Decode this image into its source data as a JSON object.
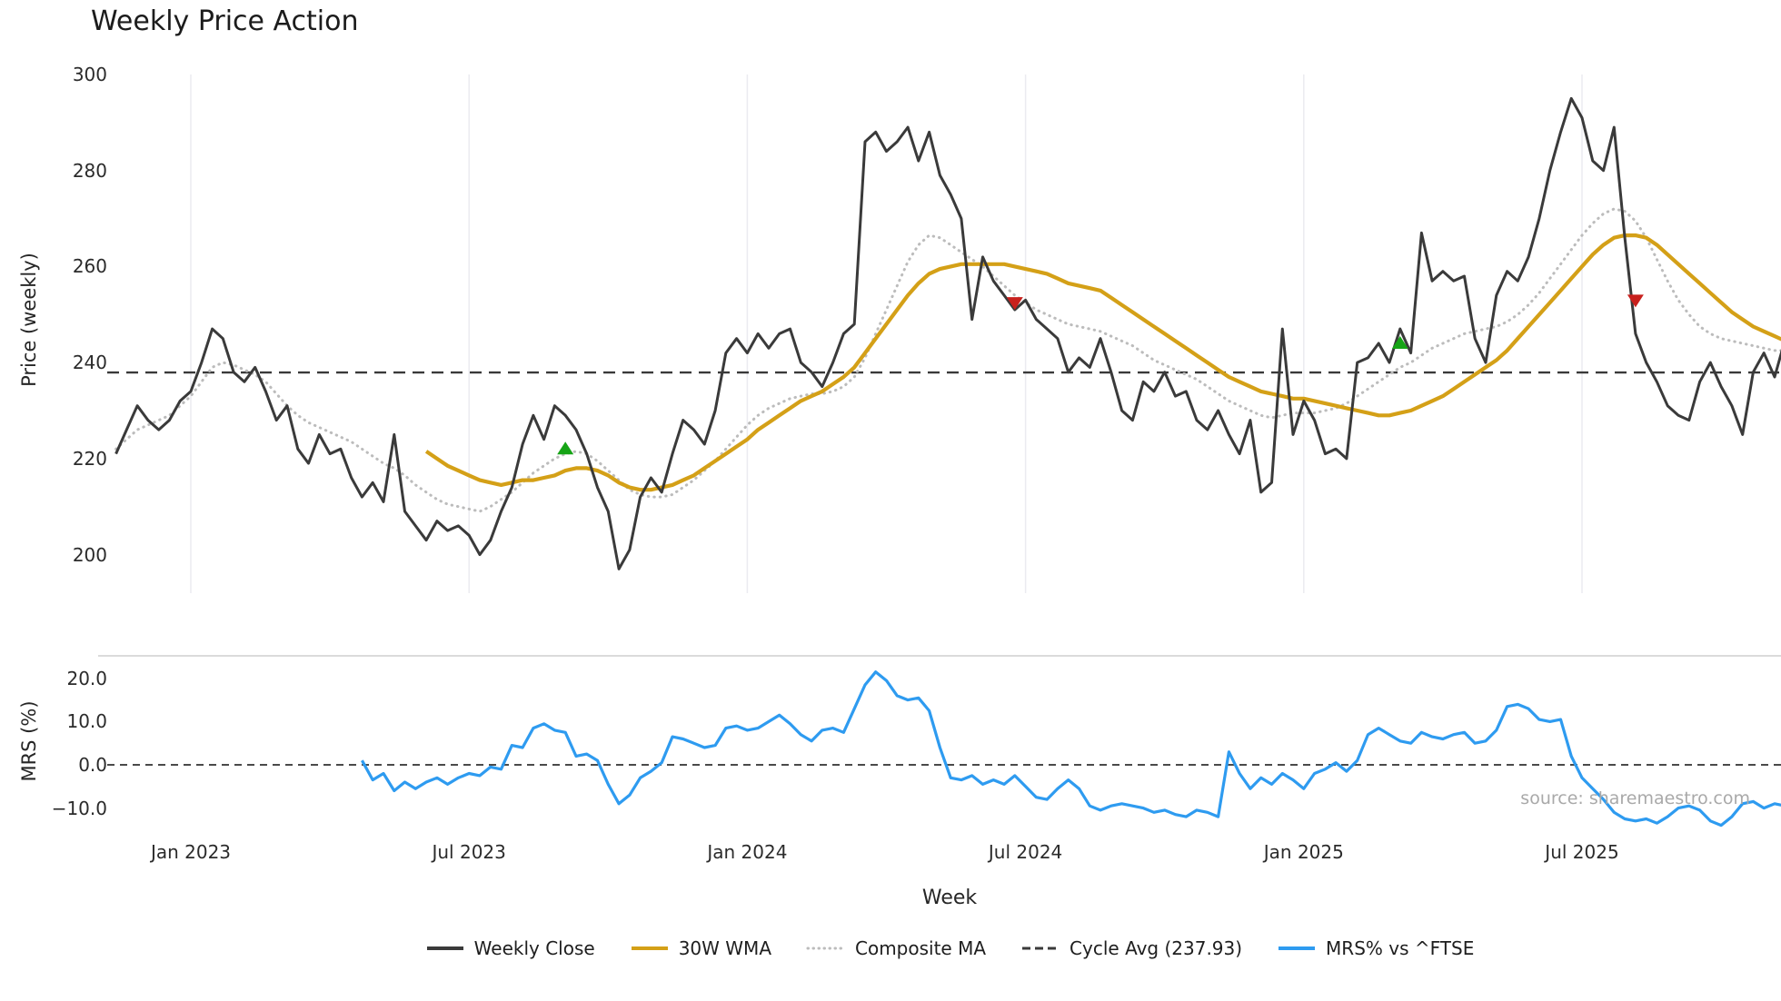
{
  "source": "source: sharemaestro.com",
  "colors": {
    "close": "#3a3a3a",
    "wma": "#d4a017",
    "composite": "#bcbcbc",
    "cycle": "#3a3a3a",
    "mrs": "#2e9bf0",
    "buy": "#16a416",
    "sell": "#c8201d",
    "grid": "#ebebf0",
    "spine": "#cfcfcf",
    "zero": "#4a4a4a",
    "axis_text": "#2b2b2b",
    "source_text": "#a9a9a9"
  },
  "legend": [
    {
      "label": "Weekly Close",
      "color_key": "close",
      "style": "solid"
    },
    {
      "label": "30W WMA",
      "color_key": "wma",
      "style": "solid"
    },
    {
      "label": "Composite MA",
      "color_key": "composite",
      "style": "dotted"
    },
    {
      "label": "Cycle Avg (237.93)",
      "color_key": "cycle",
      "style": "dashed"
    },
    {
      "label": "MRS% vs ^FTSE",
      "color_key": "mrs",
      "style": "solid"
    }
  ],
  "chart_data": [
    {
      "type": "line",
      "title": "Weekly Price Action",
      "xlabel": "Week",
      "ylabel": "Price (weekly)",
      "ylim": [
        192,
        303
      ],
      "x_unit": "week_index",
      "n_points": 157,
      "grid": "vertical-only",
      "legend_position": "bottom-center",
      "cycle_avg": 237.93,
      "yticks": [
        {
          "v": 300,
          "label": "300"
        },
        {
          "v": 280,
          "label": "280"
        },
        {
          "v": 260,
          "label": "260"
        },
        {
          "v": 240,
          "label": "240"
        },
        {
          "v": 220,
          "label": "220"
        },
        {
          "v": 200,
          "label": "200"
        }
      ],
      "xticks": [
        {
          "week": 7,
          "label": "Jan 2023"
        },
        {
          "week": 33,
          "label": "Jul 2023"
        },
        {
          "week": 59,
          "label": "Jan 2024"
        },
        {
          "week": 85,
          "label": "Jul 2024"
        },
        {
          "week": 111,
          "label": "Jan 2025"
        },
        {
          "week": 137,
          "label": "Jul 2025"
        }
      ],
      "series": [
        {
          "name": "Weekly Close",
          "color_key": "close",
          "style": "solid",
          "start_week": 0,
          "values": [
            221,
            226,
            231,
            228,
            226,
            228,
            232,
            234,
            240,
            247,
            245,
            238,
            236,
            239,
            234,
            228,
            231,
            222,
            219,
            225,
            221,
            222,
            216,
            212,
            215,
            211,
            225,
            209,
            206,
            203,
            207,
            205,
            206,
            204,
            200,
            203,
            209,
            214,
            223,
            229,
            224,
            231,
            229,
            226,
            221,
            214,
            209,
            197,
            201,
            212,
            216,
            213,
            221,
            228,
            226,
            223,
            230,
            242,
            245,
            242,
            246,
            243,
            246,
            247,
            240,
            238,
            235,
            240,
            246,
            248,
            286,
            288,
            284,
            286,
            289,
            282,
            288,
            279,
            275,
            270,
            249,
            262,
            257,
            254,
            251,
            253,
            249,
            247,
            245,
            238,
            241,
            239,
            245,
            238,
            230,
            228,
            236,
            234,
            238,
            233,
            234,
            228,
            226,
            230,
            225,
            221,
            228,
            213,
            215,
            247,
            225,
            232,
            228,
            221,
            222,
            220,
            240,
            241,
            244,
            240,
            247,
            242,
            267,
            257,
            259,
            257,
            258,
            245,
            240,
            254,
            259,
            257,
            262,
            270,
            280,
            288,
            295,
            291,
            282,
            280,
            289,
            266,
            246,
            240,
            236,
            231,
            229,
            228,
            236,
            240,
            235,
            231,
            225,
            238,
            242,
            237,
            245
          ]
        },
        {
          "name": "30W WMA",
          "color_key": "wma",
          "style": "solid",
          "start_week": 29,
          "values": [
            221.5,
            220,
            218.5,
            217.5,
            216.5,
            215.5,
            215,
            214.5,
            215,
            215.5,
            215.5,
            216,
            216.5,
            217.5,
            218,
            218,
            217.5,
            216.5,
            215,
            214,
            213.5,
            213.5,
            214,
            214.5,
            215.5,
            216.5,
            218,
            219.5,
            221,
            222.5,
            224,
            226,
            227.5,
            229,
            230.5,
            232,
            233,
            234,
            235.5,
            237,
            239,
            242,
            245,
            248,
            251,
            254,
            256.5,
            258.5,
            259.5,
            260,
            260.5,
            260.5,
            260.5,
            260.5,
            260.5,
            260,
            259.5,
            259,
            258.5,
            257.5,
            256.5,
            256,
            255.5,
            255,
            253.5,
            252,
            250.5,
            249,
            247.5,
            246,
            244.5,
            243,
            241.5,
            240,
            238.5,
            237,
            236,
            235,
            234,
            233.5,
            233,
            232.5,
            232.5,
            232,
            231.5,
            231,
            230.5,
            230,
            229.5,
            229,
            229,
            229.5,
            230,
            231,
            232,
            233,
            234.5,
            236,
            237.5,
            239,
            240.5,
            242.5,
            245,
            247.5,
            250,
            252.5,
            255,
            257.5,
            260,
            262.5,
            264.5,
            266,
            266.5,
            266.5,
            266,
            264.5,
            262.5,
            260.5,
            258.5,
            256.5,
            254.5,
            252.5,
            250.5,
            249,
            247.5,
            246.5,
            245.5,
            244.5
          ]
        },
        {
          "name": "Composite MA",
          "color_key": "composite",
          "style": "dotted",
          "start_week": 0,
          "values": [
            222,
            224,
            226,
            227,
            228,
            229,
            231,
            233,
            236,
            239,
            240,
            239.5,
            238.5,
            237.5,
            236,
            233.5,
            231,
            229,
            227.5,
            226.5,
            225.5,
            224.5,
            223.5,
            222,
            220.5,
            219,
            218,
            216.5,
            214.5,
            213,
            211.5,
            210.5,
            210,
            209.5,
            209,
            210,
            211.5,
            213,
            215,
            217,
            218.5,
            220,
            221,
            221.5,
            221,
            219.5,
            217.5,
            215.5,
            213.5,
            212.5,
            212,
            212,
            212.5,
            214,
            215.5,
            217.5,
            219.5,
            222,
            224.5,
            227,
            229,
            230.5,
            231.5,
            232.5,
            233,
            233.5,
            233.5,
            234,
            235,
            237,
            241,
            246,
            251,
            256,
            261,
            264.5,
            266.5,
            266,
            264.5,
            263,
            261.5,
            260,
            258,
            256,
            254,
            252.5,
            251,
            250,
            249,
            248,
            247.5,
            247,
            246.5,
            245.5,
            244.5,
            243.5,
            242,
            240.5,
            239.5,
            238.5,
            237.5,
            236.5,
            235,
            233.5,
            232,
            231,
            230,
            229,
            228.5,
            229,
            229.5,
            229.5,
            229.5,
            230,
            230.5,
            231.5,
            233,
            234.5,
            236,
            237.5,
            239,
            240,
            241.5,
            243,
            244,
            245,
            246,
            246.5,
            247,
            247.5,
            248.5,
            250,
            252,
            254.5,
            257.5,
            260.5,
            263.5,
            266.5,
            269,
            271,
            272,
            271.5,
            269.5,
            266,
            261.5,
            257,
            253,
            250,
            247.5,
            246,
            245,
            244.5,
            244,
            243.5,
            243,
            242.5,
            242.5
          ]
        }
      ],
      "signals": {
        "buy": [
          {
            "week": 42,
            "price": 222
          },
          {
            "week": 120,
            "price": 244
          }
        ],
        "sell": [
          {
            "week": 84,
            "price": 252.5
          },
          {
            "week": 142,
            "price": 253
          }
        ]
      }
    },
    {
      "type": "line",
      "ylabel": "MRS (%)",
      "ylim": [
        -17,
        23
      ],
      "zero_line": 0,
      "yticks": [
        {
          "v": 20,
          "label": "20.0"
        },
        {
          "v": 10,
          "label": "10.0"
        },
        {
          "v": 0,
          "label": "0.0"
        },
        {
          "v": -10,
          "label": "−10.0"
        }
      ],
      "series": [
        {
          "name": "MRS% vs ^FTSE",
          "color_key": "mrs",
          "style": "solid",
          "start_week": 23,
          "values": [
            1,
            -3.5,
            -2,
            -6,
            -4,
            -5.5,
            -4,
            -3,
            -4.5,
            -3,
            -2,
            -2.5,
            -0.5,
            -1,
            4.5,
            4,
            8.5,
            9.5,
            8,
            7.5,
            2,
            2.5,
            1,
            -4.5,
            -9,
            -7,
            -3,
            -1.5,
            0.5,
            6.5,
            6,
            5,
            4,
            4.5,
            8.5,
            9,
            8,
            8.5,
            10,
            11.5,
            9.5,
            7,
            5.5,
            8,
            8.5,
            7.5,
            13,
            18.5,
            21.5,
            19.5,
            16,
            15,
            15.5,
            12.5,
            4,
            -3,
            -3.5,
            -2.5,
            -4.5,
            -3.5,
            -4.5,
            -2.5,
            -5,
            -7.5,
            -8,
            -5.5,
            -3.5,
            -5.5,
            -9.5,
            -10.5,
            -9.5,
            -9,
            -9.5,
            -10,
            -11,
            -10.5,
            -11.5,
            -12,
            -10.5,
            -11,
            -12,
            3,
            -2,
            -5.5,
            -3,
            -4.5,
            -2,
            -3.5,
            -5.5,
            -2,
            -1,
            0.5,
            -1.5,
            1,
            7,
            8.5,
            7,
            5.5,
            5,
            7.5,
            6.5,
            6,
            7,
            7.5,
            5,
            5.5,
            8,
            13.5,
            14,
            13,
            10.5,
            10,
            10.5,
            2,
            -3,
            -5.5,
            -8,
            -11,
            -12.5,
            -13,
            -12.5,
            -13.5,
            -12,
            -10,
            -9.5,
            -10.5,
            -13,
            -14,
            -12,
            -9,
            -8.5,
            -10,
            -9,
            -9.5
          ]
        }
      ]
    }
  ]
}
